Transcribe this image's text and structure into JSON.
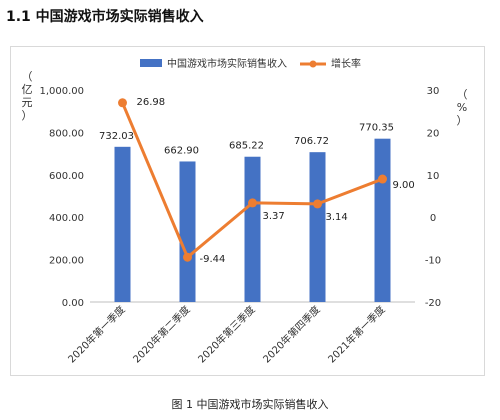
{
  "section_title": "1.1  中国游戏市场实际销售收入",
  "figure_caption": "图 1  中国游戏市场实际销售收入",
  "chart_data": {
    "type": "bar",
    "categories": [
      "2020年第一季度",
      "2020年第二季度",
      "2020年第三季度",
      "2020年第四季度",
      "2021年第一季度"
    ],
    "series": [
      {
        "name": "中国游戏市场实际销售收入",
        "type": "bar",
        "axis": "left",
        "values": [
          732.03,
          662.9,
          685.22,
          706.72,
          770.35
        ],
        "labels": [
          "732.03",
          "662.90",
          "685.22",
          "706.72",
          "770.35"
        ],
        "color": "#4472C4"
      },
      {
        "name": "增长率",
        "type": "line",
        "axis": "right",
        "values": [
          26.98,
          -9.44,
          3.37,
          3.14,
          9.0
        ],
        "labels": [
          "26.98",
          "-9.44",
          "3.37",
          "3.14",
          "9.00"
        ],
        "color": "#ED7D31"
      }
    ],
    "y_left": {
      "label": "（亿元）",
      "ylim": [
        0,
        1000
      ],
      "ticks": [
        0,
        200,
        400,
        600,
        800,
        1000
      ],
      "tick_labels": [
        "0.00",
        "200.00",
        "400.00",
        "600.00",
        "800.00",
        "1,000.00"
      ]
    },
    "y_right": {
      "label": "（%）",
      "ylim": [
        -20,
        30
      ],
      "ticks": [
        -20,
        -10,
        0,
        10,
        20,
        30
      ],
      "tick_labels": [
        "-20",
        "-10",
        "0",
        "10",
        "20",
        "30"
      ]
    },
    "legend": "top",
    "grid": false
  }
}
